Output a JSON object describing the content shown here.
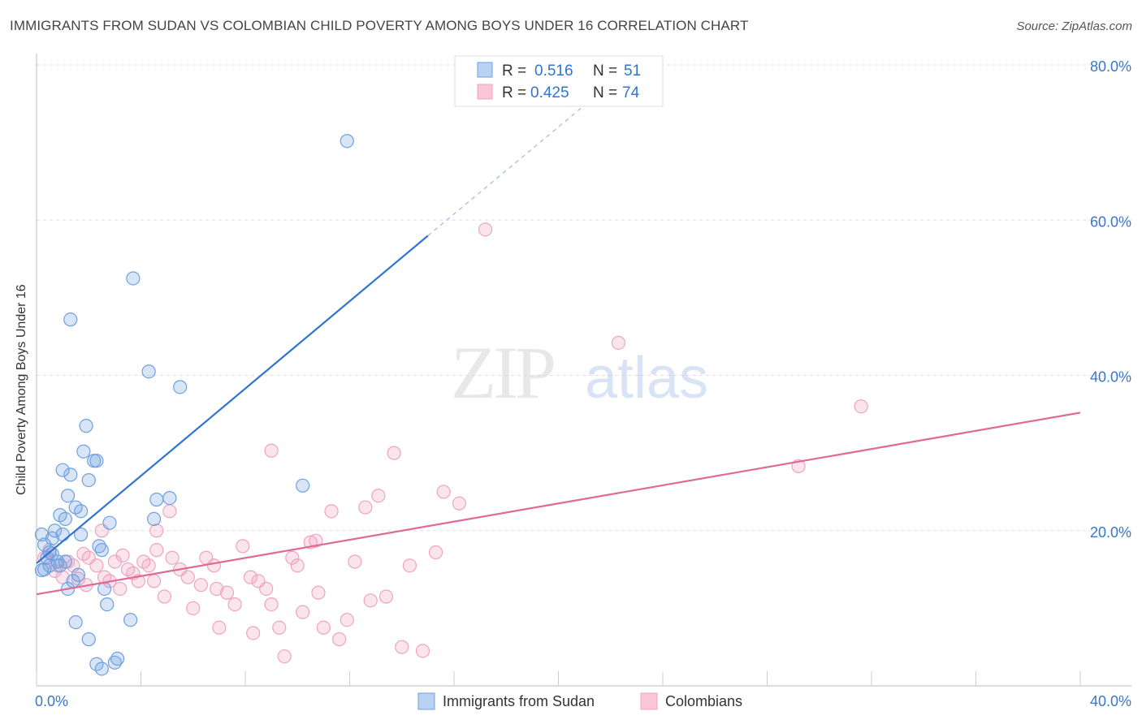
{
  "header": {
    "title": "IMMIGRANTS FROM SUDAN VS COLOMBIAN CHILD POVERTY AMONG BOYS UNDER 16 CORRELATION CHART",
    "source": "Source: ZipAtlas.com"
  },
  "watermark": {
    "zip": "ZIP",
    "atlas": "atlas"
  },
  "chart_data": {
    "type": "scatter",
    "title": "IMMIGRANTS FROM SUDAN VS COLOMBIAN CHILD POVERTY AMONG BOYS UNDER 16 CORRELATION CHART",
    "xlabel": "",
    "ylabel": "Child Poverty Among Boys Under 16",
    "xlim": [
      0,
      40
    ],
    "ylim": [
      0,
      80
    ],
    "x_tick_labels": {
      "left": "0.0%",
      "right": "40.0%"
    },
    "y_ticks": [
      {
        "value": 20,
        "label": "20.0%"
      },
      {
        "value": 40,
        "label": "40.0%"
      },
      {
        "value": 60,
        "label": "60.0%"
      },
      {
        "value": 80,
        "label": "80.0%"
      }
    ],
    "grid": true,
    "legend_top": [
      {
        "r_label": "R =",
        "r_value": "0.516",
        "n_label": "N =",
        "n_value": "51"
      },
      {
        "r_label": "R =",
        "r_value": "0.425",
        "n_label": "N =",
        "n_value": "74"
      }
    ],
    "series": [
      {
        "name": "Immigrants from Sudan",
        "color": "#6fa0e0",
        "line_color": "#2f74d0",
        "trend": {
          "x0": 0,
          "y0": 15.8,
          "x1": 15,
          "y1": 58,
          "dash_to_x": 22.5,
          "dash_to_y": 79
        },
        "points": [
          [
            0.2,
            19.5
          ],
          [
            0.3,
            18.2
          ],
          [
            0.4,
            16.5
          ],
          [
            0.5,
            15.5
          ],
          [
            0.6,
            17.0
          ],
          [
            0.7,
            20.0
          ],
          [
            0.8,
            16.0
          ],
          [
            0.9,
            22.0
          ],
          [
            1.0,
            19.5
          ],
          [
            1.1,
            21.5
          ],
          [
            1.2,
            24.5
          ],
          [
            1.0,
            27.8
          ],
          [
            1.3,
            27.2
          ],
          [
            1.5,
            23.0
          ],
          [
            1.7,
            22.5
          ],
          [
            1.8,
            30.2
          ],
          [
            1.9,
            33.5
          ],
          [
            2.0,
            26.5
          ],
          [
            2.2,
            29.0
          ],
          [
            2.3,
            29.0
          ],
          [
            2.4,
            18.0
          ],
          [
            2.5,
            17.5
          ],
          [
            2.6,
            12.5
          ],
          [
            2.7,
            10.5
          ],
          [
            2.8,
            21.0
          ],
          [
            1.2,
            12.5
          ],
          [
            1.4,
            13.5
          ],
          [
            1.5,
            8.2
          ],
          [
            1.6,
            14.3
          ],
          [
            2.0,
            6.0
          ],
          [
            2.3,
            2.8
          ],
          [
            2.5,
            2.2
          ],
          [
            3.0,
            3.0
          ],
          [
            3.1,
            3.5
          ],
          [
            3.6,
            8.5
          ],
          [
            1.3,
            47.2
          ],
          [
            3.7,
            52.5
          ],
          [
            4.3,
            40.5
          ],
          [
            4.5,
            21.5
          ],
          [
            4.6,
            24.0
          ],
          [
            5.1,
            24.2
          ],
          [
            5.5,
            38.5
          ],
          [
            10.2,
            25.8
          ],
          [
            11.9,
            70.2
          ],
          [
            0.3,
            15.0
          ],
          [
            0.5,
            17.2
          ],
          [
            0.9,
            15.5
          ],
          [
            1.1,
            16.0
          ],
          [
            0.6,
            19.0
          ],
          [
            1.7,
            19.5
          ],
          [
            0.2,
            14.9
          ]
        ]
      },
      {
        "name": "Colombians",
        "color": "#f0a3bf",
        "line_color": "#e06a95",
        "trend": {
          "x0": 0,
          "y0": 11.8,
          "x1": 40,
          "y1": 35.2
        },
        "points": [
          [
            0.3,
            16.5
          ],
          [
            0.5,
            17.5
          ],
          [
            0.8,
            15.5
          ],
          [
            1.0,
            14.0
          ],
          [
            1.2,
            16.0
          ],
          [
            1.4,
            15.5
          ],
          [
            1.6,
            13.8
          ],
          [
            1.8,
            17.0
          ],
          [
            2.0,
            16.5
          ],
          [
            2.3,
            15.5
          ],
          [
            2.6,
            14.0
          ],
          [
            2.8,
            13.5
          ],
          [
            3.0,
            16.0
          ],
          [
            3.2,
            12.5
          ],
          [
            3.5,
            15.0
          ],
          [
            3.7,
            14.5
          ],
          [
            3.9,
            13.5
          ],
          [
            4.1,
            16.0
          ],
          [
            4.3,
            15.5
          ],
          [
            4.6,
            17.5
          ],
          [
            4.9,
            11.5
          ],
          [
            5.2,
            16.5
          ],
          [
            5.5,
            15.0
          ],
          [
            5.8,
            14.0
          ],
          [
            6.0,
            10.0
          ],
          [
            6.3,
            13.0
          ],
          [
            6.5,
            16.5
          ],
          [
            6.8,
            15.5
          ],
          [
            7.0,
            7.5
          ],
          [
            7.3,
            12.0
          ],
          [
            7.6,
            10.5
          ],
          [
            7.9,
            18.0
          ],
          [
            8.2,
            14.0
          ],
          [
            8.5,
            13.5
          ],
          [
            8.8,
            12.5
          ],
          [
            9.0,
            10.5
          ],
          [
            9.3,
            7.5
          ],
          [
            9.5,
            3.8
          ],
          [
            9.8,
            16.5
          ],
          [
            10.0,
            15.5
          ],
          [
            10.2,
            9.5
          ],
          [
            10.5,
            18.5
          ],
          [
            10.8,
            12.0
          ],
          [
            11.0,
            7.5
          ],
          [
            11.3,
            22.5
          ],
          [
            11.6,
            6.0
          ],
          [
            11.9,
            8.5
          ],
          [
            12.2,
            16.0
          ],
          [
            12.6,
            23.0
          ],
          [
            12.8,
            11.0
          ],
          [
            13.1,
            24.5
          ],
          [
            13.4,
            11.5
          ],
          [
            13.7,
            30.0
          ],
          [
            14.0,
            5.0
          ],
          [
            14.3,
            15.5
          ],
          [
            14.8,
            4.5
          ],
          [
            15.3,
            17.2
          ],
          [
            15.6,
            25.0
          ],
          [
            16.2,
            23.5
          ],
          [
            17.2,
            58.8
          ],
          [
            9.0,
            30.3
          ],
          [
            22.3,
            44.2
          ],
          [
            29.2,
            28.3
          ],
          [
            31.6,
            36.0
          ],
          [
            2.5,
            20.0
          ],
          [
            5.1,
            22.5
          ],
          [
            6.9,
            12.5
          ],
          [
            8.3,
            6.8
          ],
          [
            4.6,
            20.0
          ],
          [
            10.7,
            18.7
          ],
          [
            3.3,
            16.8
          ],
          [
            1.9,
            13.0
          ],
          [
            4.5,
            13.5
          ],
          [
            0.7,
            14.8
          ]
        ]
      }
    ],
    "legend_bottom": [
      "Immigrants from Sudan",
      "Colombians"
    ]
  }
}
